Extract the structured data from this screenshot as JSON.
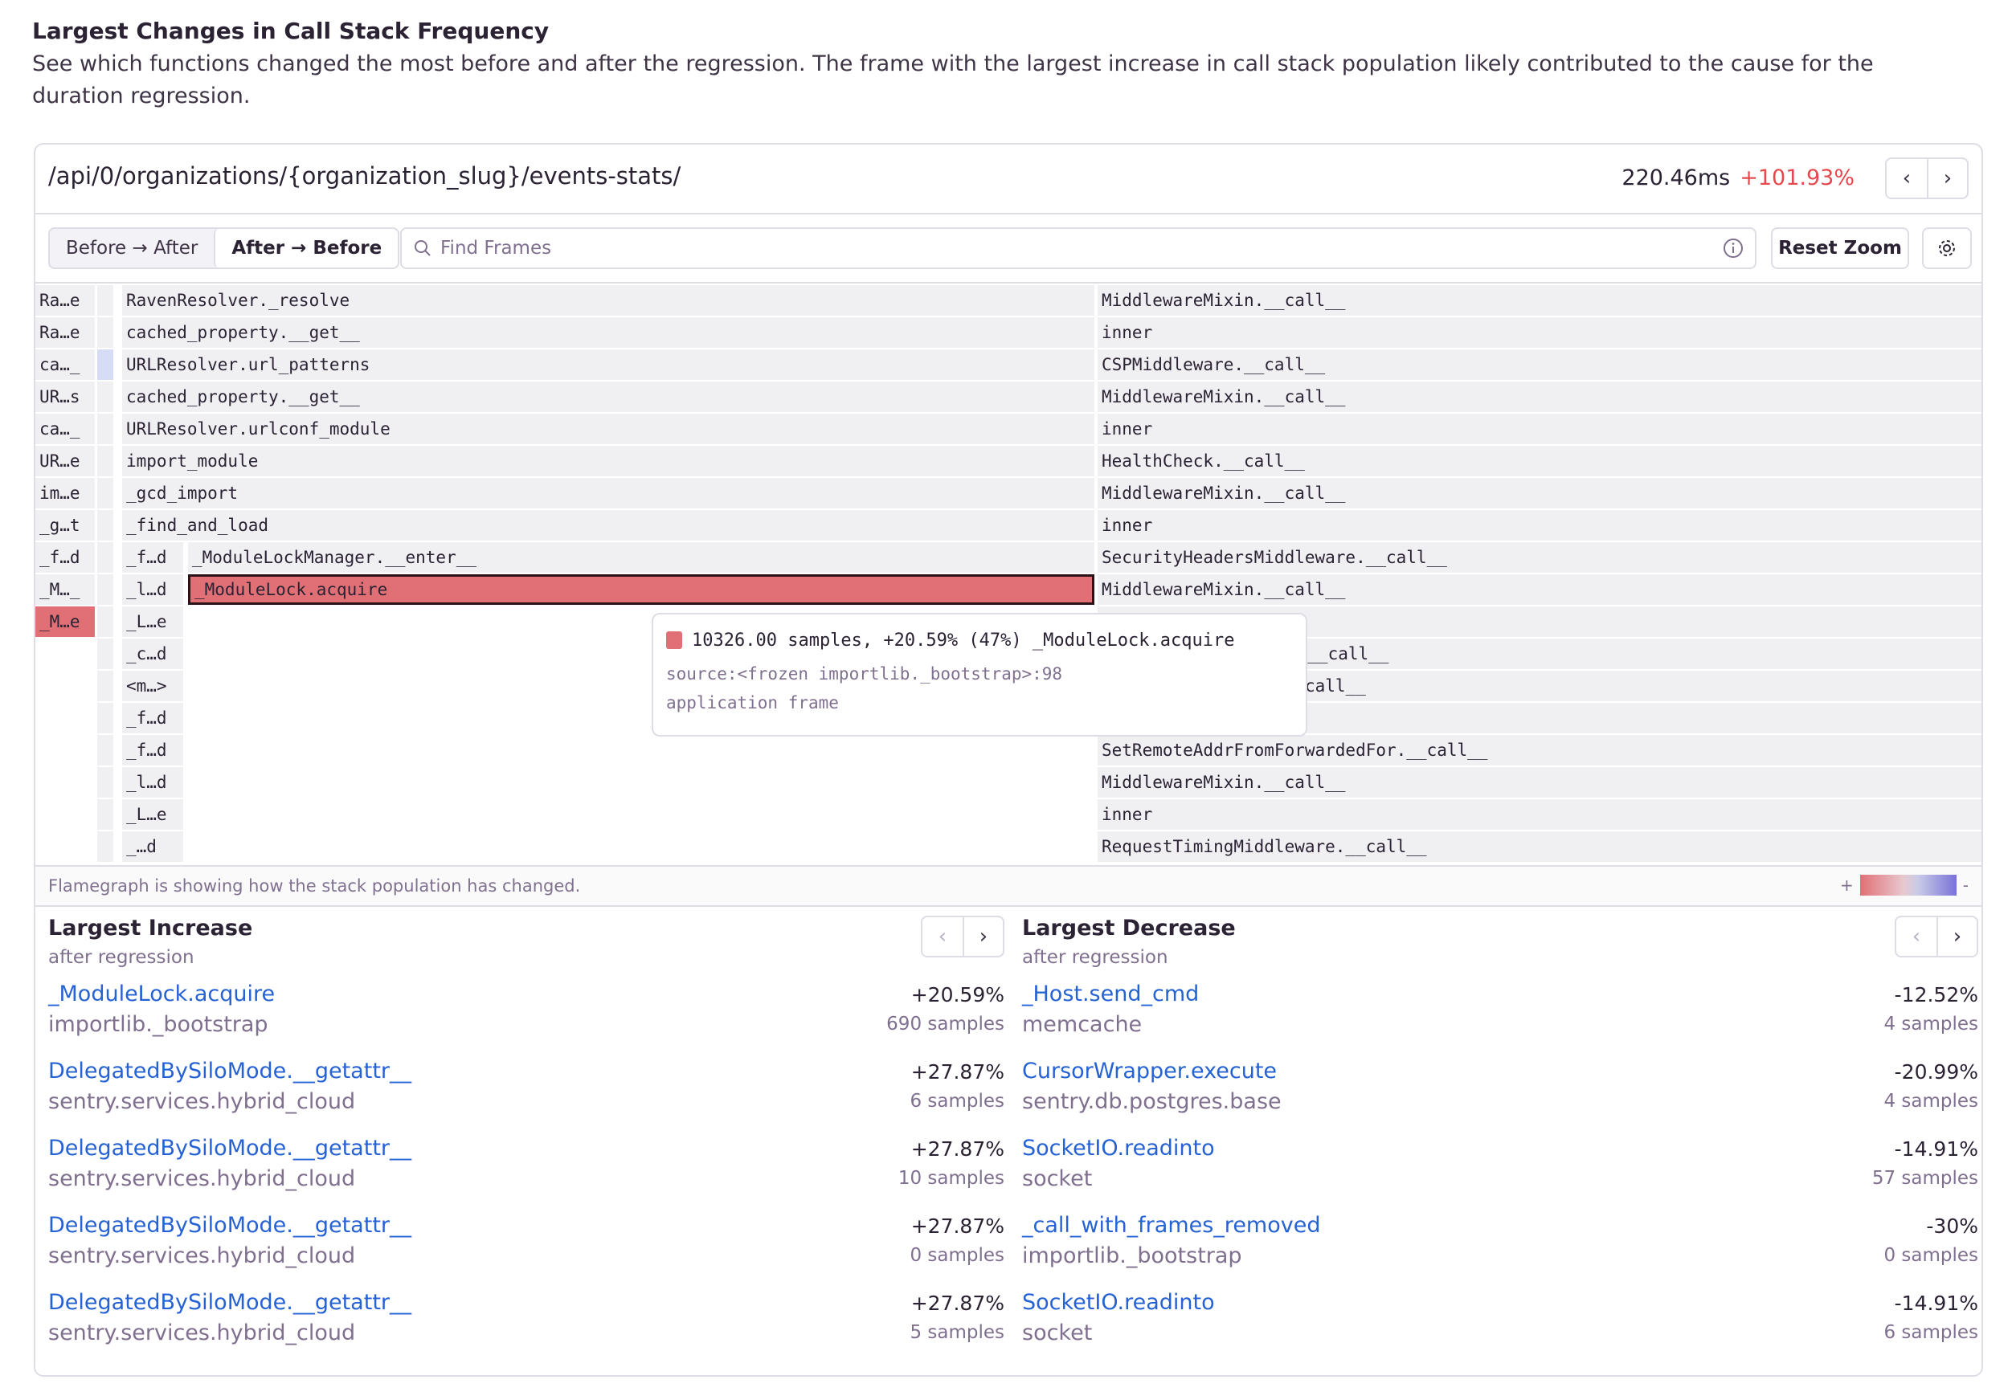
{
  "section": {
    "title": "Largest Changes in Call Stack Frequency",
    "description": "See which functions changed the most before and after the regression. The frame with the largest increase in call stack population likely contributed to the cause for the duration regression."
  },
  "header": {
    "transaction": "/api/0/organizations/{organization_slug}/events-stats/",
    "duration": "220.46ms",
    "change": "+101.93%",
    "change_color": "#e5484d",
    "prev_icon": "chevron-left-icon",
    "next_icon": "chevron-right-icon"
  },
  "toolbar": {
    "mode_options": [
      "Before → After",
      "After → Before"
    ],
    "selected_mode": "After → Before",
    "search_placeholder": "Find Frames",
    "reset_zoom": "Reset Zoom",
    "settings_icon": "gear-icon",
    "info_icon": "info-icon"
  },
  "flamegraph": {
    "rows": [
      {
        "a": "Ra…e",
        "c": "RavenResolver._resolve",
        "d": "MiddlewareMixin.__call__"
      },
      {
        "a": "Ra…e",
        "c": "cached_property.__get__",
        "d": "inner"
      },
      {
        "a": "ca…_",
        "c": "URLResolver.url_patterns",
        "d": "CSPMiddleware.__call__"
      },
      {
        "a": "UR…s",
        "c": "cached_property.__get__",
        "d": "MiddlewareMixin.__call__"
      },
      {
        "a": "ca…_",
        "c": "URLResolver.urlconf_module",
        "d": "inner"
      },
      {
        "a": "UR…e",
        "c": "import_module",
        "d": "HealthCheck.__call__"
      },
      {
        "a": "im…e",
        "c": "_gcd_import",
        "d": "MiddlewareMixin.__call__"
      },
      {
        "a": "_g…t",
        "c": "_find_and_load",
        "d": "inner"
      },
      {
        "a": "_f…d",
        "b": "_f…d",
        "c": "_ModuleLockManager.__enter__",
        "d": "SecurityHeadersMiddleware.__call__"
      },
      {
        "a": "_M…_",
        "b": "_l…d",
        "c": "_ModuleLock.acquire",
        "d": "MiddlewareMixin.__call__",
        "selected": true
      },
      {
        "a": "_M…e",
        "b": "_L…e",
        "d": "",
        "a_highlight": true
      },
      {
        "b": "_c…d",
        "d": "e.__call__",
        "partial": true
      },
      {
        "b": "<m…>",
        "d": "call__",
        "partial": true
      },
      {
        "b": "_f…d",
        "d": ""
      },
      {
        "b": "_f…d",
        "d": "SetRemoteAddrFromForwardedFor.__call__"
      },
      {
        "b": "_l…d",
        "d": "MiddlewareMixin.__call__"
      },
      {
        "b": "_L…e",
        "d": "inner"
      },
      {
        "b": "_…d",
        "d": "RequestTimingMiddleware.__call__"
      }
    ],
    "tooltip": {
      "summary": "10326.00 samples, +20.59% (47%) _ModuleLock.acquire",
      "source": "source:<frozen importlib._bootstrap>:98",
      "kind": "application frame",
      "swatch_color": "#e07076"
    },
    "footer": "Flamegraph is showing how the stack population has changed.",
    "legend": {
      "plus": "+",
      "minus": "-",
      "increase_color": "#e07076",
      "decrease_color": "#7a72d8"
    }
  },
  "increase": {
    "title": "Largest Increase",
    "subtitle": "after regression",
    "items": [
      {
        "name": "_ModuleLock.acquire",
        "module": "importlib._bootstrap",
        "change": "+20.59%",
        "samples": "690 samples"
      },
      {
        "name": "DelegatedBySiloMode.__getattr__",
        "module": "sentry.services.hybrid_cloud",
        "change": "+27.87%",
        "samples": "6 samples"
      },
      {
        "name": "DelegatedBySiloMode.__getattr__",
        "module": "sentry.services.hybrid_cloud",
        "change": "+27.87%",
        "samples": "10 samples"
      },
      {
        "name": "DelegatedBySiloMode.__getattr__",
        "module": "sentry.services.hybrid_cloud",
        "change": "+27.87%",
        "samples": "0 samples"
      },
      {
        "name": "DelegatedBySiloMode.__getattr__",
        "module": "sentry.services.hybrid_cloud",
        "change": "+27.87%",
        "samples": "5 samples"
      }
    ]
  },
  "decrease": {
    "title": "Largest Decrease",
    "subtitle": "after regression",
    "items": [
      {
        "name": "_Host.send_cmd",
        "module": "memcache",
        "change": "-12.52%",
        "samples": "4 samples"
      },
      {
        "name": "CursorWrapper.execute",
        "module": "sentry.db.postgres.base",
        "change": "-20.99%",
        "samples": "4 samples"
      },
      {
        "name": "SocketIO.readinto",
        "module": "socket",
        "change": "-14.91%",
        "samples": "57 samples"
      },
      {
        "name": "_call_with_frames_removed",
        "module": "importlib._bootstrap",
        "change": "-30%",
        "samples": "0 samples"
      },
      {
        "name": "SocketIO.readinto",
        "module": "socket",
        "change": "-14.91%",
        "samples": "6 samples"
      }
    ]
  }
}
